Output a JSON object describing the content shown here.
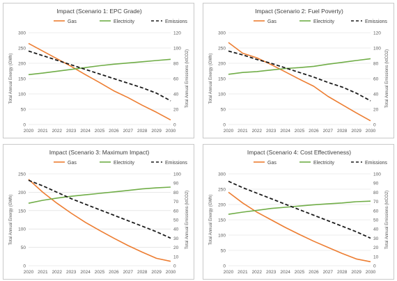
{
  "chart_data": [
    {
      "type": "line",
      "title": "Impact (Scenario 1: EPC Grade)",
      "xlabel": "",
      "ylabel": "Total Annual Energy (GWh)",
      "y2label": "Total Annual Emissions (ktCO2)",
      "x": [
        2020,
        2021,
        2022,
        2023,
        2024,
        2025,
        2026,
        2027,
        2028,
        2029,
        2030
      ],
      "ylim": [
        0,
        300
      ],
      "y2lim": [
        0,
        120
      ],
      "yticks": [
        0,
        50,
        100,
        150,
        200,
        250,
        300
      ],
      "y2ticks": [
        0,
        20,
        40,
        60,
        80,
        100,
        120
      ],
      "legend": "top",
      "grid": true,
      "series": [
        {
          "name": "Gas",
          "axis": "left",
          "color": "#ED7D31",
          "dash": false,
          "values": [
            265,
            240,
            215,
            190,
            163,
            137,
            110,
            88,
            63,
            40,
            15
          ]
        },
        {
          "name": "Electricity",
          "axis": "left",
          "color": "#70AD47",
          "dash": false,
          "values": [
            163,
            168,
            174,
            180,
            186,
            192,
            197,
            201,
            205,
            209,
            213
          ]
        },
        {
          "name": "Emissions",
          "axis": "right",
          "color": "#1a1a1a",
          "dash": true,
          "values": [
            96,
            90,
            84,
            78,
            72,
            66,
            60,
            54,
            48,
            41,
            31
          ]
        }
      ]
    },
    {
      "type": "line",
      "title": "Impact (Scenario 2: Fuel Poverty)",
      "xlabel": "",
      "ylabel": "Total Annual Energy (GWh)",
      "y2label": "Total Annual Emissions (ktCO2)",
      "x": [
        2020,
        2021,
        2022,
        2023,
        2024,
        2025,
        2026,
        2027,
        2028,
        2029,
        2030
      ],
      "ylim": [
        0,
        300
      ],
      "y2lim": [
        0,
        120
      ],
      "yticks": [
        0,
        50,
        100,
        150,
        200,
        250,
        300
      ],
      "y2ticks": [
        0,
        20,
        40,
        60,
        80,
        100,
        120
      ],
      "legend": "top",
      "grid": true,
      "series": [
        {
          "name": "Gas",
          "axis": "left",
          "color": "#ED7D31",
          "dash": false,
          "values": [
            268,
            233,
            218,
            196,
            172,
            148,
            125,
            92,
            65,
            38,
            12
          ]
        },
        {
          "name": "Electricity",
          "axis": "left",
          "color": "#70AD47",
          "dash": false,
          "values": [
            164,
            170,
            173,
            178,
            183,
            186,
            190,
            197,
            203,
            209,
            215
          ]
        },
        {
          "name": "Emissions",
          "axis": "right",
          "color": "#1a1a1a",
          "dash": true,
          "values": [
            96,
            91,
            85,
            80,
            74,
            68,
            62,
            55,
            49,
            41,
            31
          ]
        }
      ]
    },
    {
      "type": "line",
      "title": "Impact (Scenario 3: Maximum Impact)",
      "xlabel": "",
      "ylabel": "Total Annual Energy (GWh)",
      "y2label": "Total Annual Emissions (ktCO2)",
      "x": [
        2020,
        2021,
        2022,
        2023,
        2024,
        2025,
        2026,
        2027,
        2028,
        2029,
        2030
      ],
      "ylim": [
        0,
        250
      ],
      "y2lim": [
        0,
        100
      ],
      "yticks": [
        0,
        50,
        100,
        150,
        200,
        250
      ],
      "y2ticks": [
        0,
        10,
        20,
        30,
        40,
        50,
        60,
        70,
        80,
        90,
        100
      ],
      "legend": "top",
      "grid": true,
      "series": [
        {
          "name": "Gas",
          "axis": "left",
          "color": "#ED7D31",
          "dash": false,
          "values": [
            235,
            200,
            170,
            143,
            118,
            96,
            75,
            55,
            37,
            20,
            12
          ]
        },
        {
          "name": "Electricity",
          "axis": "left",
          "color": "#70AD47",
          "dash": false,
          "values": [
            170,
            178,
            184,
            189,
            193,
            197,
            201,
            205,
            209,
            212,
            214
          ]
        },
        {
          "name": "Emissions",
          "axis": "right",
          "color": "#1a1a1a",
          "dash": true,
          "values": [
            93,
            87,
            80,
            73,
            67,
            61,
            55,
            49,
            43,
            37,
            30
          ]
        }
      ]
    },
    {
      "type": "line",
      "title": "Impact (Scenario 4: Cost Effectiveness)",
      "xlabel": "",
      "ylabel": "Total Annual Energy (GWh)",
      "y2label": "Total Annual Emissions (ktCO2)",
      "x": [
        2020,
        2021,
        2022,
        2023,
        2024,
        2025,
        2026,
        2027,
        2028,
        2029,
        2030
      ],
      "ylim": [
        0,
        300
      ],
      "y2lim": [
        0,
        100
      ],
      "yticks": [
        0,
        50,
        100,
        150,
        200,
        250,
        300
      ],
      "y2ticks": [
        0,
        10,
        20,
        30,
        40,
        50,
        60,
        70,
        80,
        90,
        100
      ],
      "legend": "top",
      "grid": true,
      "series": [
        {
          "name": "Gas",
          "axis": "left",
          "color": "#ED7D31",
          "dash": false,
          "values": [
            240,
            205,
            175,
            150,
            125,
            102,
            80,
            60,
            40,
            22,
            13
          ]
        },
        {
          "name": "Electricity",
          "axis": "left",
          "color": "#70AD47",
          "dash": false,
          "values": [
            168,
            175,
            181,
            187,
            191,
            195,
            199,
            202,
            205,
            209,
            211
          ]
        },
        {
          "name": "Emissions",
          "axis": "right",
          "color": "#1a1a1a",
          "dash": true,
          "values": [
            92,
            85,
            79,
            73,
            67,
            61,
            55,
            49,
            43,
            37,
            30
          ]
        }
      ]
    }
  ]
}
